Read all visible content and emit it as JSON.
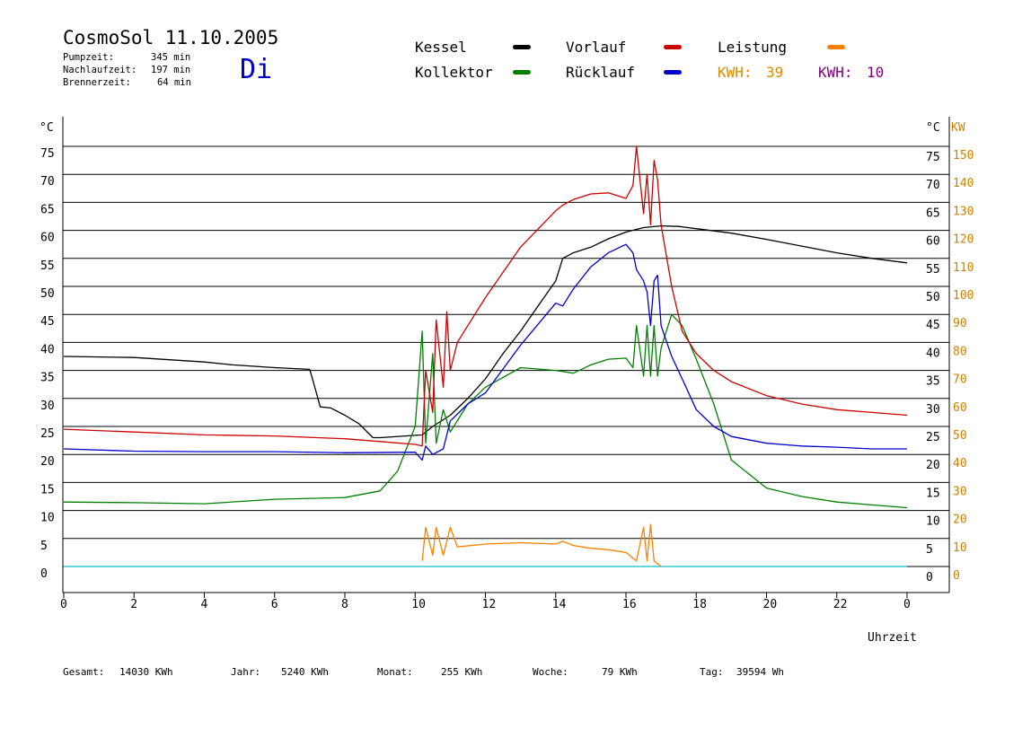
{
  "header": {
    "title": "CosmoSol 11.10.2005",
    "day": "Di",
    "stats": [
      {
        "label": "Pumpzeit:",
        "value": "345 min"
      },
      {
        "label": "Nachlaufzeit:",
        "value": "197 min"
      },
      {
        "label": "Brennerzeit:",
        "value": "64 min"
      }
    ]
  },
  "legend": {
    "kessel": "Kessel",
    "kollektor": "Kollektor",
    "vorlauf": "Vorlauf",
    "ruecklauf": "Rücklauf",
    "leistung": "Leistung",
    "kwh_label": "KWH:",
    "kwh_a": "39",
    "kwh_b": "10"
  },
  "colors": {
    "kessel": "#000000",
    "kollektor": "#008000",
    "vorlauf": "#cc0000",
    "ruecklauf": "#0000cc",
    "leistung": "#ff8000",
    "kwh_a": "#e08a00",
    "kwh_b": "#800080",
    "pump": "#33cccc"
  },
  "footer": [
    {
      "label": "Gesamt:",
      "value": "14030 KWh"
    },
    {
      "label": "Jahr:",
      "value": "5240 KWh"
    },
    {
      "label": "Monat:",
      "value": "255 KWh"
    },
    {
      "label": "Woche:",
      "value": "79 KWh"
    },
    {
      "label": "Tag:",
      "value": "39594 Wh"
    }
  ],
  "chart_data": {
    "type": "line",
    "xlabel": "Uhrzeit",
    "ylabel_left": "°C",
    "ylabel_right_temp": "°C",
    "ylabel_right_power": "KW",
    "xlim": [
      0,
      24
    ],
    "ylim": [
      0,
      75
    ],
    "y2lim": [
      0,
      150
    ],
    "xticks": [
      "0",
      "2",
      "4",
      "6",
      "8",
      "10",
      "12",
      "14",
      "16",
      "18",
      "20",
      "22",
      "0"
    ],
    "yticks": [
      0,
      5,
      10,
      15,
      20,
      25,
      30,
      35,
      40,
      45,
      50,
      55,
      60,
      65,
      70,
      75
    ],
    "y2ticks": [
      0,
      10,
      20,
      30,
      40,
      50,
      60,
      70,
      80,
      90,
      100,
      110,
      120,
      130,
      140,
      150
    ],
    "grid": "horizontal",
    "series": [
      {
        "name": "Kessel",
        "color": "#000000",
        "x": [
          0,
          2,
          4,
          4.8,
          6,
          7,
          7.1,
          7.3,
          7.6,
          8,
          8.4,
          8.8,
          9,
          10.2,
          10.5,
          11,
          11.5,
          12,
          12.5,
          13,
          13.5,
          14,
          14.1,
          14.2,
          14.5,
          15,
          15.5,
          16,
          16.5,
          17,
          17.5,
          18,
          19,
          20,
          21,
          22,
          23,
          24
        ],
        "y": [
          37.5,
          37.3,
          36.5,
          36,
          35.5,
          35.2,
          33,
          28.5,
          28.3,
          27,
          25.5,
          23,
          23,
          23.5,
          25,
          27,
          30,
          33.5,
          38,
          42,
          46.5,
          51,
          53,
          55,
          56,
          57,
          58.5,
          59.7,
          60.5,
          60.8,
          60.7,
          60.3,
          59.5,
          58.4,
          57.2,
          56,
          55,
          54.2
        ]
      },
      {
        "name": "Kollektor",
        "color": "#008000",
        "x": [
          0,
          2,
          4,
          6,
          8,
          9,
          9.5,
          10,
          10.2,
          10.3,
          10.5,
          10.6,
          10.8,
          11,
          11.5,
          12,
          13,
          14,
          14.5,
          15,
          15.5,
          16,
          16.2,
          16.3,
          16.5,
          16.6,
          16.7,
          16.8,
          16.9,
          17,
          17.3,
          17.6,
          18,
          18.5,
          19,
          20,
          21,
          22,
          23,
          24
        ],
        "y": [
          11.5,
          11.4,
          11.2,
          12,
          12.3,
          13.5,
          17,
          25,
          42,
          22,
          38,
          22,
          28,
          24,
          29,
          32,
          35.5,
          35,
          34.5,
          36,
          37,
          37.2,
          35.5,
          43,
          34,
          43,
          34,
          43,
          34,
          39,
          45,
          43,
          37,
          29,
          19,
          14,
          12.5,
          11.5,
          11,
          10.5
        ]
      },
      {
        "name": "Vorlauf",
        "color": "#cc0000",
        "x": [
          0,
          2,
          4,
          6,
          8,
          9,
          10,
          10.2,
          10.3,
          10.5,
          10.6,
          10.8,
          10.9,
          11,
          11.2,
          11.5,
          12,
          13,
          14,
          14.2,
          14.5,
          15,
          15.5,
          16,
          16.2,
          16.3,
          16.5,
          16.6,
          16.7,
          16.8,
          16.9,
          17,
          17.3,
          17.6,
          18,
          18.5,
          19,
          20,
          21,
          22,
          23,
          24
        ],
        "y": [
          24.5,
          24,
          23.5,
          23.3,
          22.8,
          22.3,
          21.8,
          21.5,
          35,
          27.5,
          44,
          32,
          45.5,
          35,
          40,
          43,
          48,
          57,
          63.5,
          64.5,
          65.5,
          66.5,
          66.7,
          65.7,
          68,
          75,
          63,
          70,
          61,
          72.5,
          69,
          61,
          50,
          42,
          38,
          35,
          33,
          30.5,
          29,
          28,
          27.5,
          27
        ]
      },
      {
        "name": "Rücklauf",
        "color": "#0000cc",
        "x": [
          0,
          2,
          4,
          6,
          8,
          10,
          10.2,
          10.3,
          10.5,
          10.8,
          11,
          11.5,
          12,
          13,
          14,
          14.2,
          14.5,
          15,
          15.5,
          16,
          16.2,
          16.3,
          16.5,
          16.6,
          16.7,
          16.8,
          16.9,
          17,
          17.3,
          17.6,
          18,
          18.5,
          19,
          20,
          21,
          22,
          23,
          24
        ],
        "y": [
          21,
          20.6,
          20.5,
          20.5,
          20.3,
          20.4,
          19,
          21.5,
          20,
          21,
          26,
          29,
          31,
          39.5,
          47,
          46.5,
          49.5,
          53.5,
          56,
          57.5,
          56,
          53,
          51,
          49,
          43,
          51,
          52,
          43,
          37.5,
          33.5,
          28,
          25,
          23.2,
          22,
          21.5,
          21.3,
          21,
          21
        ]
      },
      {
        "name": "Leistung",
        "color": "#ff8000",
        "x": [
          10.2,
          10.3,
          10.5,
          10.6,
          10.8,
          11,
          11.2,
          12,
          13,
          14,
          14.2,
          14.5,
          15,
          15.5,
          16,
          16.2,
          16.3,
          16.5,
          16.6,
          16.7,
          16.8,
          16.9,
          17
        ],
        "y2": [
          2,
          14,
          4,
          14,
          4,
          14,
          7,
          8,
          8.5,
          8,
          9,
          7.5,
          6.5,
          6,
          5,
          3,
          2,
          14,
          2,
          15,
          2,
          1,
          0
        ]
      }
    ],
    "annotations": {
      "kwh_a": "KWH: 39",
      "kwh_b": "KWH: 10"
    }
  }
}
